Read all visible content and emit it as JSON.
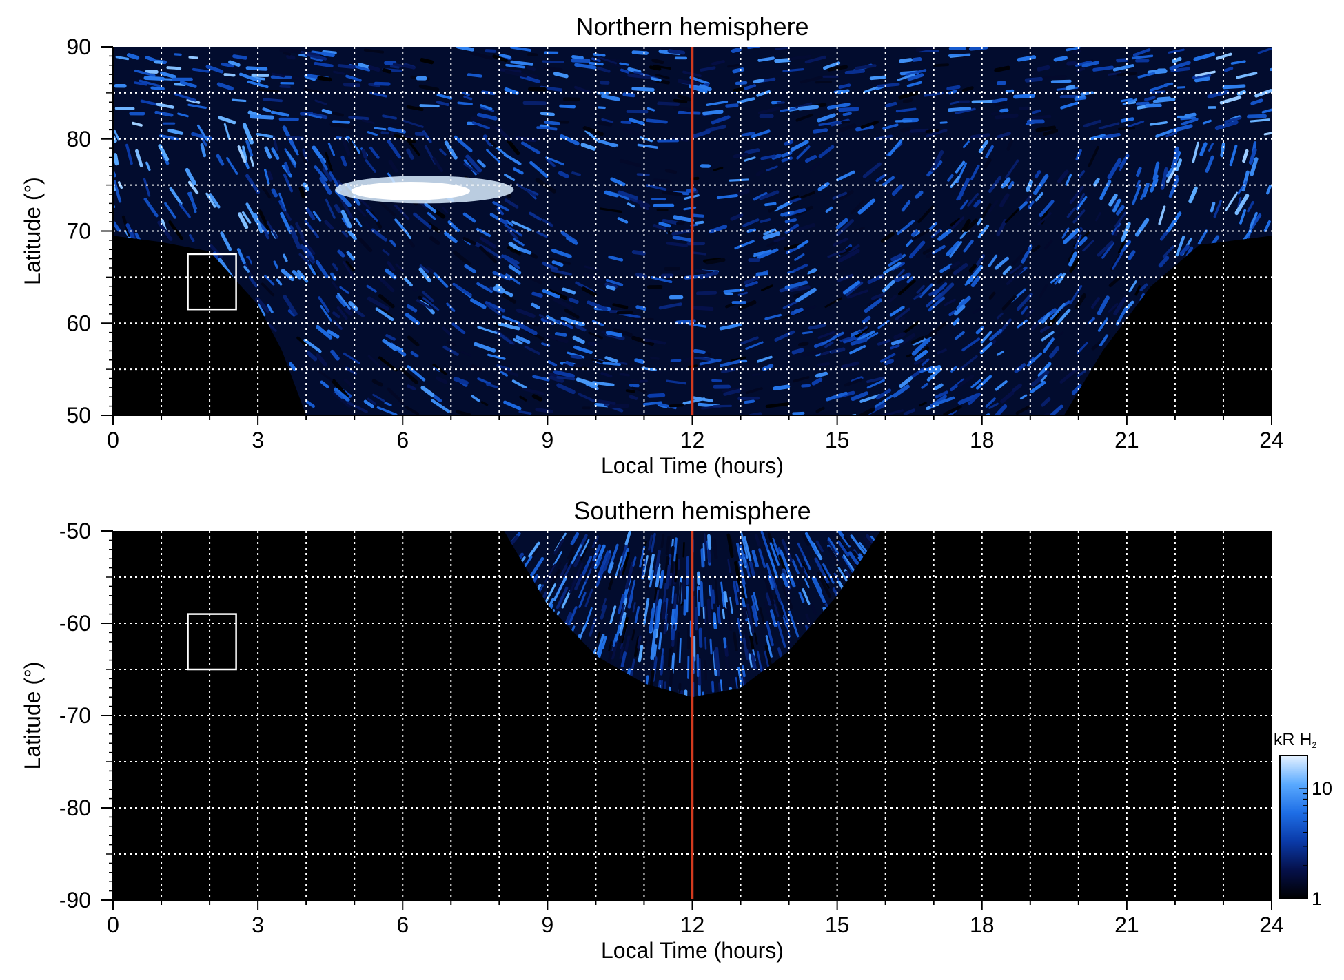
{
  "chart_data": [
    {
      "type": "heatmap",
      "title": "Northern hemisphere",
      "xlabel": "Local Time (hours)",
      "ylabel": "Latitude (°)",
      "xlim": [
        0,
        24
      ],
      "ylim": [
        50,
        90
      ],
      "x_ticks": [
        "0",
        "3",
        "6",
        "9",
        "12",
        "15",
        "18",
        "21",
        "24"
      ],
      "y_ticks": [
        "50",
        "60",
        "70",
        "80",
        "90"
      ],
      "grid": true,
      "reference_line": {
        "x": 12,
        "color": "#d23a1e"
      },
      "marker_box": {
        "x_range": [
          1.55,
          2.55
        ],
        "lat_range": [
          61.5,
          67.5
        ]
      },
      "coverage_boundary": [
        {
          "lt": 0,
          "lat": 69.5
        },
        {
          "lt": 1,
          "lat": 68.8
        },
        {
          "lt": 2,
          "lat": 67.8
        },
        {
          "lt": 3,
          "lat": 62
        },
        {
          "lt": 3.5,
          "lat": 57
        },
        {
          "lt": 4,
          "lat": 50
        },
        {
          "lt": 19.7,
          "lat": 50
        },
        {
          "lt": 20.5,
          "lat": 57
        },
        {
          "lt": 21.5,
          "lat": 64
        },
        {
          "lt": 22.5,
          "lat": 68.5
        },
        {
          "lt": 24,
          "lat": 69.5
        }
      ],
      "bright_features": [
        {
          "lt_range": [
            4.6,
            8.3
          ],
          "lat_range": [
            73,
            76
          ],
          "peak_kR": 20
        }
      ]
    },
    {
      "type": "heatmap",
      "title": "Southern hemisphere",
      "xlabel": "Local Time (hours)",
      "ylabel": "Latitude (°)",
      "xlim": [
        0,
        24
      ],
      "ylim": [
        -90,
        -50
      ],
      "x_ticks": [
        "0",
        "3",
        "6",
        "9",
        "12",
        "15",
        "18",
        "21",
        "24"
      ],
      "y_ticks": [
        "-50",
        "-60",
        "-70",
        "-80",
        "-90"
      ],
      "grid": true,
      "reference_line": {
        "x": 12,
        "color": "#d23a1e"
      },
      "marker_box": {
        "x_range": [
          1.55,
          2.55
        ],
        "lat_range": [
          -65,
          -59
        ]
      },
      "coverage_boundary": [
        {
          "lt": 8.1,
          "lat": -50
        },
        {
          "lt": 9,
          "lat": -58
        },
        {
          "lt": 10,
          "lat": -63.5
        },
        {
          "lt": 11,
          "lat": -66.5
        },
        {
          "lt": 12,
          "lat": -68
        },
        {
          "lt": 13,
          "lat": -67
        },
        {
          "lt": 14,
          "lat": -63
        },
        {
          "lt": 15,
          "lat": -57
        },
        {
          "lt": 15.9,
          "lat": -50
        }
      ]
    }
  ],
  "colorbar": {
    "unit_label": "kR H",
    "unit_subscript": "2",
    "tick_labels": [
      "10",
      "1"
    ],
    "scale": "log",
    "range": [
      1,
      20
    ],
    "colors": [
      "#000000",
      "#05104a",
      "#0a3aa8",
      "#1e6ee6",
      "#5aaaff",
      "#e6f2ff"
    ]
  },
  "colors": {
    "background": "#000000",
    "grid": "#ffffff",
    "noon_line": "#d23a1e",
    "axis": "#000000"
  }
}
